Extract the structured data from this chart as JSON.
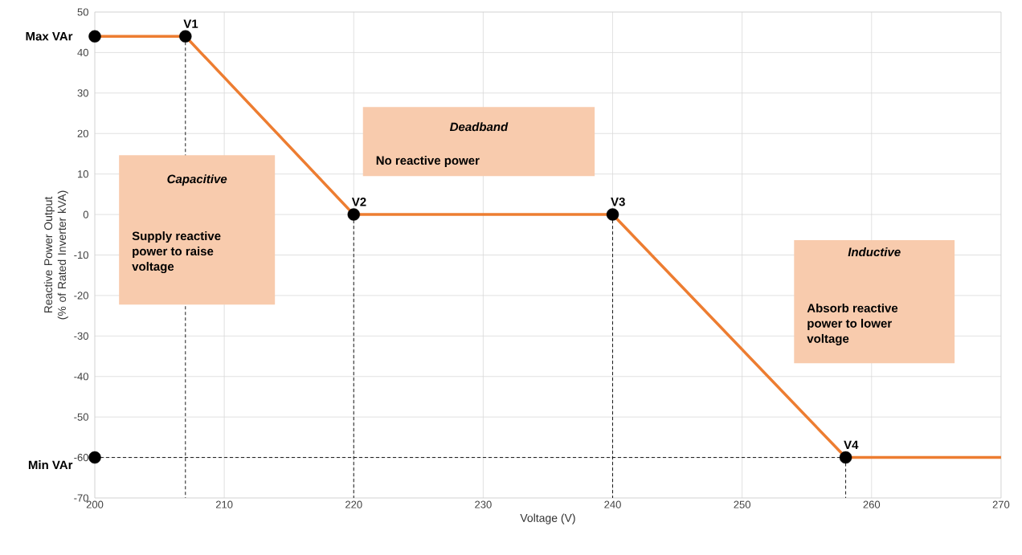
{
  "chart_data": {
    "type": "line",
    "xlabel": "Voltage (V)",
    "ylabel": "Reactive Power Output (% of Rated Inverter kVA)",
    "xlim": [
      200,
      270
    ],
    "ylim": [
      -70,
      50
    ],
    "xticks": [
      200,
      210,
      220,
      230,
      240,
      250,
      260,
      270
    ],
    "yticks": [
      -70,
      -60,
      -50,
      -40,
      -30,
      -20,
      -10,
      0,
      10,
      20,
      30,
      40,
      50
    ],
    "grid": true,
    "series": [
      {
        "type": "line",
        "color": "#ed7d31",
        "line_style": "solid",
        "x": [
          200,
          207,
          220,
          240,
          258,
          270
        ],
        "values": [
          44,
          44,
          0,
          0,
          -60,
          -60
        ]
      },
      {
        "type": "line",
        "color": "#000000",
        "line_style": "dashed",
        "x": [
          207,
          207
        ],
        "values": [
          44,
          -70
        ]
      },
      {
        "type": "line",
        "color": "#000000",
        "line_style": "dashed",
        "x": [
          220,
          220
        ],
        "values": [
          0,
          -70
        ]
      },
      {
        "type": "line",
        "color": "#000000",
        "line_style": "dashed",
        "x": [
          240,
          240
        ],
        "values": [
          0,
          -70
        ]
      },
      {
        "type": "line",
        "color": "#000000",
        "line_style": "dashed",
        "x": [
          258,
          258
        ],
        "values": [
          -60,
          -70
        ]
      },
      {
        "type": "line",
        "color": "#000000",
        "line_style": "dashed",
        "x": [
          200,
          258
        ],
        "values": [
          -60,
          -60
        ]
      },
      {
        "type": "scatter",
        "color": "#000000",
        "marker": "circle",
        "x": [
          200,
          207,
          220,
          240,
          258,
          200
        ],
        "values": [
          44,
          44,
          0,
          0,
          -60,
          -60
        ]
      }
    ],
    "annotations": [
      {
        "text": "V1",
        "x": 207,
        "y": 44
      },
      {
        "text": "V2",
        "x": 220,
        "y": 0
      },
      {
        "text": "V3",
        "x": 240,
        "y": 0
      },
      {
        "text": "V4",
        "x": 258,
        "y": -60
      },
      {
        "text": "Max VAr",
        "x": 200,
        "y": 44
      },
      {
        "text": "Min VAr",
        "x": 200,
        "y": -60
      },
      "Capacitive",
      "Supply reactive power to raise voltage",
      "Deadband",
      "No reactive power",
      "Inductive",
      "Absorb reactive power to lower voltage"
    ]
  }
}
